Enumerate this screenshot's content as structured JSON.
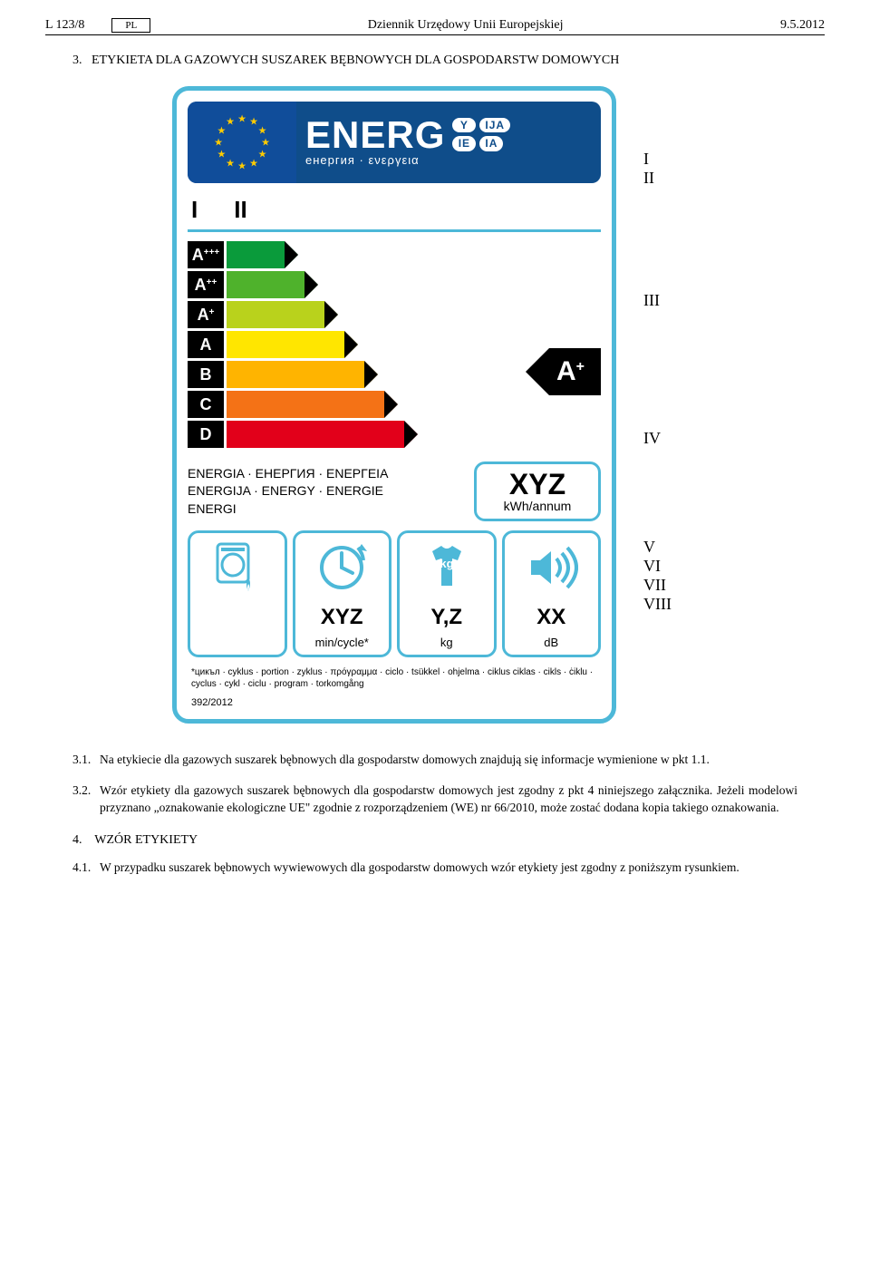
{
  "header": {
    "page_ref": "L 123/8",
    "lang": "PL",
    "journal": "Dziennik Urzędowy Unii Europejskiej",
    "date": "9.5.2012"
  },
  "section3": {
    "num": "3.",
    "title": "ETYKIETA DLA GAZOWYCH SUSZAREK BĘBNOWYCH DLA GOSPODARSTW DOMOWYCH"
  },
  "banner": {
    "word": "ENERG",
    "sub": "енергия · ενεργεια",
    "pills": [
      "Y",
      "IJA",
      "IE",
      "IA"
    ]
  },
  "supplier": {
    "field1": "I",
    "field2": "II"
  },
  "classes": [
    {
      "label": "A",
      "sup": "+++",
      "color": "#0a9b3b",
      "len": 64
    },
    {
      "label": "A",
      "sup": "++",
      "color": "#4fb22c",
      "len": 86
    },
    {
      "label": "A",
      "sup": "+",
      "color": "#b9d21c",
      "len": 108
    },
    {
      "label": "A",
      "sup": "",
      "color": "#ffe600",
      "len": 130
    },
    {
      "label": "B",
      "sup": "",
      "color": "#ffb400",
      "len": 152
    },
    {
      "label": "C",
      "sup": "",
      "color": "#f47216",
      "len": 174
    },
    {
      "label": "D",
      "sup": "",
      "color": "#e2001a",
      "len": 196
    }
  ],
  "rated": {
    "label": "A",
    "sup": "+"
  },
  "consumption": {
    "text": "ENERGIA · ЕНЕРГИЯ · ΕΝΕΡΓΕΙΑ\nENERGIJA · ENERGY · ENERGIE\nENERGI",
    "value": "XYZ",
    "unit": "kWh/annum"
  },
  "pictos": [
    {
      "icon": "dryer-gas",
      "value": "",
      "unit": ""
    },
    {
      "icon": "clock",
      "value": "XYZ",
      "unit": "min/cycle*"
    },
    {
      "icon": "tshirt-kg",
      "value": "Y,Z",
      "unit": "kg"
    },
    {
      "icon": "sound",
      "value": "XX",
      "unit": "dB"
    }
  ],
  "footnote": "*цикъл · cyklus · portion · zyklus · πρόγραμμα · ciclo · tsükkel · ohjelma · ciklus ciklas · cikls · ċiklu · cyclus · cykl · ciclu · program · torkomgång",
  "regulation": "392/2012",
  "annotations": {
    "I_II": "I\nII",
    "III": "III",
    "IV": "IV",
    "V_VIII": "V\nVI\nVII\nVIII"
  },
  "paras": {
    "p31_num": "3.1.",
    "p31": "Na etykiecie dla gazowych suszarek bębnowych dla gospodarstw domowych znajdują się informacje wymienione w pkt 1.1.",
    "p32_num": "3.2.",
    "p32": "Wzór etykiety dla gazowych suszarek bębnowych dla gospodarstw domowych jest zgodny z pkt 4 niniejszego załącznika. Jeżeli modelowi przyznano „oznakowanie ekologiczne UE\" zgodnie z rozporządzeniem (WE) nr 66/2010, może zostać dodana kopia takiego oznakowania.",
    "s4_num": "4.",
    "s4_title": "WZÓR ETYKIETY",
    "p41_num": "4.1.",
    "p41": "W przypadku suszarek bębnowych wywiewowych dla gospodarstw domowych wzór etykiety jest zgodny z poniższym rysunkiem."
  },
  "colors": {
    "label_border": "#4db8d8",
    "banner_bg": "#0f4d8a",
    "star": "#ffcc00"
  }
}
